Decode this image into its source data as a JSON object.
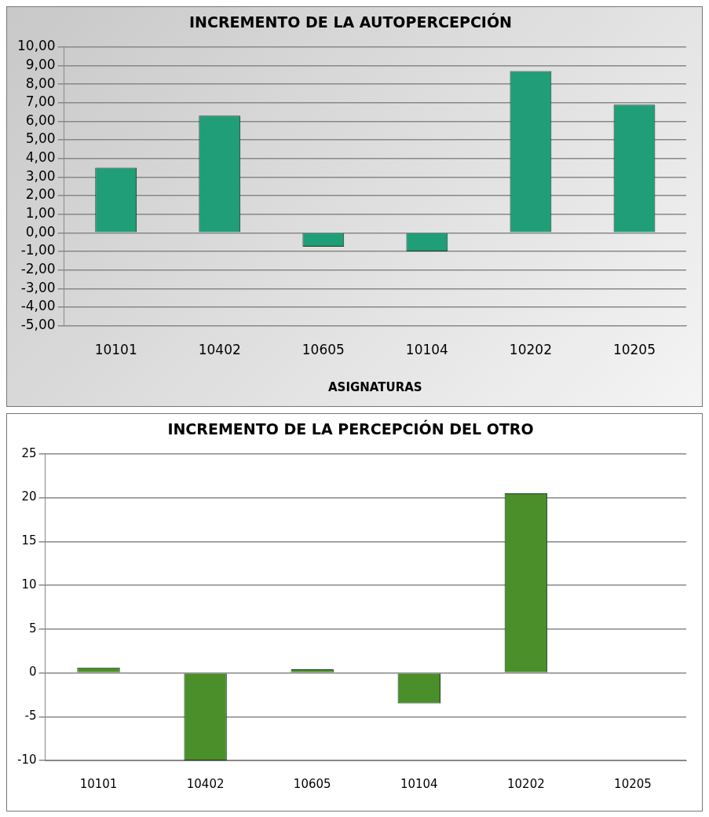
{
  "chart_data": [
    {
      "type": "bar",
      "title": "INCREMENTO DE LA AUTOPERCEPCIÓN",
      "xlabel": "ASIGNATURAS",
      "categories": [
        "10101",
        "10402",
        "10605",
        "10104",
        "10202",
        "10205"
      ],
      "values": [
        3.5,
        6.3,
        -0.75,
        -1.0,
        8.7,
        6.9
      ],
      "color": "#1f9e78",
      "ylim": [
        -5,
        10
      ],
      "yticks": [
        {
          "value": -5,
          "label": "-5,00"
        },
        {
          "value": -4,
          "label": "-4,00"
        },
        {
          "value": -3,
          "label": "-3,00"
        },
        {
          "value": -2,
          "label": "-2,00"
        },
        {
          "value": -1,
          "label": "-1,00"
        },
        {
          "value": 0,
          "label": "0,00"
        },
        {
          "value": 1,
          "label": "1,00"
        },
        {
          "value": 2,
          "label": "2,00"
        },
        {
          "value": 3,
          "label": "3,00"
        },
        {
          "value": 4,
          "label": "4,00"
        },
        {
          "value": 5,
          "label": "5,00"
        },
        {
          "value": 6,
          "label": "6,00"
        },
        {
          "value": 7,
          "label": "7,00"
        },
        {
          "value": 8,
          "label": "8,00"
        },
        {
          "value": 9,
          "label": "9,00"
        },
        {
          "value": 10,
          "label": "10,00"
        }
      ],
      "grid": "y",
      "legend": false
    },
    {
      "type": "bar",
      "title": "INCREMENTO DE LA PERCEPCIÓN DEL OTRO",
      "categories": [
        "10101",
        "10402",
        "10605",
        "10104",
        "10202",
        "10205"
      ],
      "values": [
        0.6,
        -10,
        0.4,
        -3.5,
        20.5,
        null
      ],
      "color": "#4a8f2a",
      "ylim": [
        -10,
        25
      ],
      "yticks": [
        -10,
        -5,
        0,
        5,
        10,
        15,
        20,
        25
      ],
      "grid": "y",
      "legend": false
    }
  ]
}
